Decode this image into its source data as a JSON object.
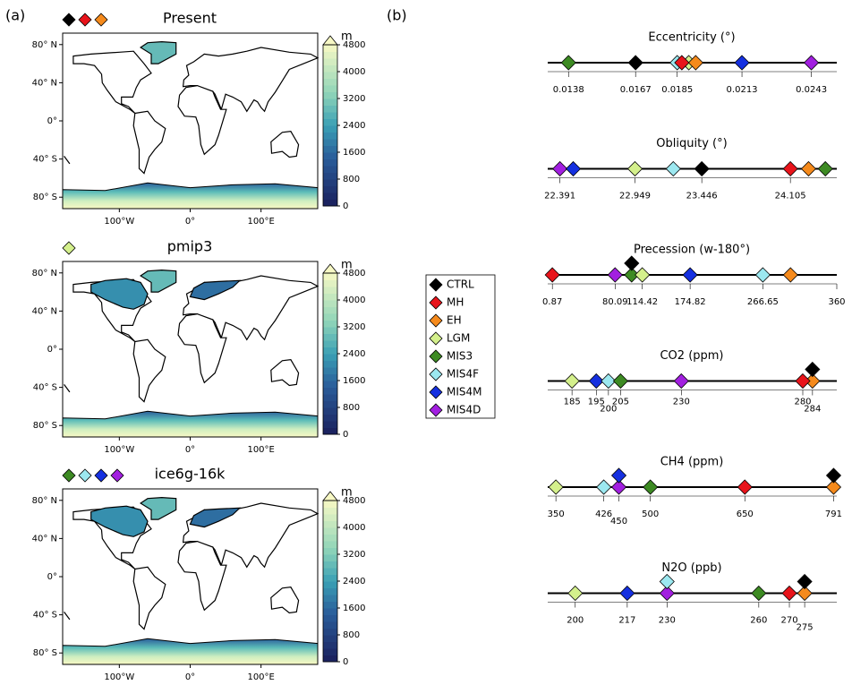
{
  "panel_a": {
    "label": "(a)",
    "lat_labels": [
      "80° N",
      "40° N",
      "0°",
      "40° S",
      "80° S"
    ],
    "lon_labels": [
      "100°W",
      "0°",
      "100°E"
    ],
    "colorbar": {
      "unit": "m",
      "lim": [
        0,
        4800
      ],
      "ticks": [
        0,
        800,
        1600,
        2400,
        3200,
        4000,
        4800
      ]
    },
    "maps": [
      {
        "title": "Present",
        "marker_colors": [
          "#000000",
          "#e8141b",
          "#f58a1c"
        ],
        "laurentide_ice": false
      },
      {
        "title": "pmip3",
        "marker_colors": [
          "#d4f08c"
        ],
        "laurentide_ice": true
      },
      {
        "title": "ice6g-16k",
        "marker_colors": [
          "#3d8a23",
          "#9ce8f0",
          "#1530e0",
          "#a21fe0"
        ],
        "laurentide_ice": true
      }
    ]
  },
  "chart_data": {
    "type": "strip",
    "label": "(b)",
    "series": [
      {
        "name": "CTRL",
        "color": "#000000"
      },
      {
        "name": "MH",
        "color": "#e8141b"
      },
      {
        "name": "EH",
        "color": "#f58a1c"
      },
      {
        "name": "LGM",
        "color": "#d4f08c"
      },
      {
        "name": "MIS3",
        "color": "#3d8a23"
      },
      {
        "name": "MIS4F",
        "color": "#9ce8f0"
      },
      {
        "name": "MIS4M",
        "color": "#1530e0"
      },
      {
        "name": "MIS4D",
        "color": "#a21fe0"
      }
    ],
    "panels": [
      {
        "title": "Eccentricity (°)",
        "xlim": [
          0.0129,
          0.0254
        ],
        "xticks": [
          0.0138,
          0.0167,
          0.0185,
          0.0213,
          0.0243
        ],
        "values": [
          0.0167,
          0.0187,
          0.0193,
          0.019,
          0.0138,
          0.0185,
          0.0213,
          0.0243
        ]
      },
      {
        "title": "Obliquity (°)",
        "xlim": [
          22.3,
          24.45
        ],
        "xticks": [
          22.391,
          22.949,
          23.446,
          24.105
        ],
        "values": [
          23.446,
          24.105,
          24.24,
          22.949,
          24.365,
          23.234,
          22.49,
          22.391
        ]
      },
      {
        "title": "Precession (w-180°)",
        "xlim": [
          -5,
          360
        ],
        "xticks": [
          0.87,
          80.09,
          114.42,
          174.82,
          266.65,
          360
        ],
        "values": [
          101,
          0.87,
          301.6,
          114.42,
          101,
          266.65,
          174.82,
          80.09
        ]
      },
      {
        "title": "CO2 (ppm)",
        "xlim": [
          175,
          294
        ],
        "xticks": [
          185,
          195,
          200,
          205,
          230,
          280,
          284
        ],
        "values": [
          284,
          280,
          284,
          185,
          205,
          200,
          195,
          230
        ]
      },
      {
        "title": "CH4 (ppm)",
        "xlim": [
          337,
          796
        ],
        "xticks": [
          350,
          426,
          450,
          500,
          650,
          791
        ],
        "values": [
          791,
          650,
          791,
          350,
          500,
          426,
          450,
          450
        ]
      },
      {
        "title": "N2O (ppb)",
        "xlim": [
          191,
          285.5
        ],
        "xticks": [
          200,
          217,
          230,
          260,
          270,
          275
        ],
        "values": [
          275,
          270,
          275,
          200,
          260,
          230,
          217,
          230
        ]
      }
    ]
  }
}
